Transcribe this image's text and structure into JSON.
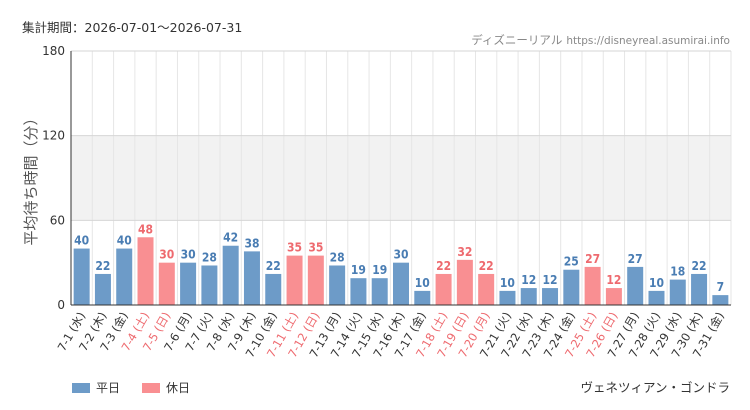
{
  "header": {
    "period_label": "集計期間：",
    "period_range": "2026-07-01〜2026-07-31",
    "site_name": "ディズニーリアル",
    "site_url": "https://disneyreal.asumirai.info"
  },
  "legend": {
    "items": [
      {
        "label": "平日",
        "color": "#6d9bc8"
      },
      {
        "label": "休日",
        "color": "#f98f92"
      }
    ]
  },
  "attraction_name": "ヴェネツィアン・ゴンドラ",
  "colors": {
    "weekday_bar": "#6d9bc8",
    "holiday_bar": "#f98f92",
    "weekday_text": "#4a7db3",
    "holiday_text": "#ee6a6f",
    "band": "#f2f2f2"
  },
  "chart_data": {
    "type": "bar",
    "ylabel": "平均待ち時間（分）",
    "ylim": [
      0,
      180
    ],
    "yticks": [
      0,
      60,
      120,
      180
    ],
    "grid": true,
    "shaded_band": [
      60,
      120
    ],
    "legend_position": "bottom-left",
    "categories": [
      "7-1 (水)",
      "7-2 (木)",
      "7-3 (金)",
      "7-4 (土)",
      "7-5 (日)",
      "7-6 (月)",
      "7-7 (火)",
      "7-8 (水)",
      "7-9 (木)",
      "7-10 (金)",
      "7-11 (土)",
      "7-12 (日)",
      "7-13 (月)",
      "7-14 (火)",
      "7-15 (水)",
      "7-16 (木)",
      "7-17 (金)",
      "7-18 (土)",
      "7-19 (日)",
      "7-20 (月)",
      "7-21 (火)",
      "7-22 (水)",
      "7-23 (木)",
      "7-24 (金)",
      "7-25 (土)",
      "7-26 (日)",
      "7-27 (月)",
      "7-28 (火)",
      "7-29 (水)",
      "7-30 (木)",
      "7-31 (金)"
    ],
    "values": [
      40,
      22,
      40,
      48,
      30,
      30,
      28,
      42,
      38,
      22,
      35,
      35,
      28,
      19,
      19,
      30,
      10,
      22,
      32,
      22,
      10,
      12,
      12,
      25,
      27,
      12,
      27,
      10,
      18,
      22,
      7
    ],
    "day_types": [
      "平日",
      "平日",
      "平日",
      "休日",
      "休日",
      "平日",
      "平日",
      "平日",
      "平日",
      "平日",
      "休日",
      "休日",
      "平日",
      "平日",
      "平日",
      "平日",
      "平日",
      "休日",
      "休日",
      "休日",
      "平日",
      "平日",
      "平日",
      "平日",
      "休日",
      "休日",
      "平日",
      "平日",
      "平日",
      "平日",
      "平日"
    ]
  }
}
